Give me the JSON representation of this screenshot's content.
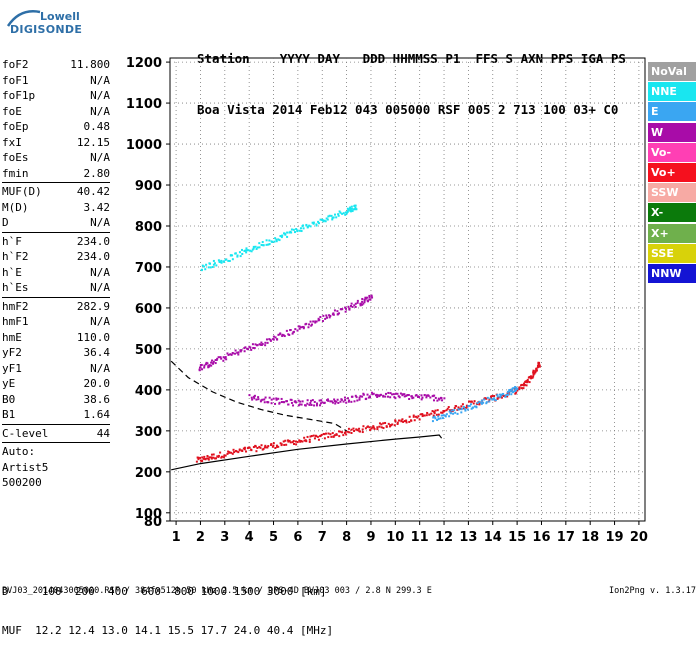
{
  "logo": {
    "line1": "Lowell",
    "line2": "DIGISONDE"
  },
  "header": {
    "labels": "Station    YYYY DAY   DDD HHMMSS P1  FFS S AXN PPS IGA PS",
    "values": "Boa Vista 2014 Feb12 043 005000 RSF 005 2 713 100 03+ C0"
  },
  "params": {
    "group1": [
      {
        "name": "foF2",
        "value": "11.800"
      },
      {
        "name": "foF1",
        "value": "N/A"
      },
      {
        "name": "foF1p",
        "value": "N/A"
      },
      {
        "name": "foE",
        "value": "N/A"
      },
      {
        "name": "foEp",
        "value": "0.48"
      },
      {
        "name": "fxI",
        "value": "12.15"
      },
      {
        "name": "foEs",
        "value": "N/A"
      },
      {
        "name": "fmin",
        "value": "2.80"
      }
    ],
    "group2": [
      {
        "name": "MUF(D)",
        "value": "40.42"
      },
      {
        "name": "M(D)",
        "value": "3.42"
      },
      {
        "name": "D",
        "value": "N/A"
      }
    ],
    "group3": [
      {
        "name": "h`F",
        "value": "234.0"
      },
      {
        "name": "h`F2",
        "value": "234.0"
      },
      {
        "name": "h`E",
        "value": "N/A"
      },
      {
        "name": "h`Es",
        "value": "N/A"
      }
    ],
    "group4": [
      {
        "name": "hmF2",
        "value": "282.9"
      },
      {
        "name": "hmF1",
        "value": "N/A"
      },
      {
        "name": "hmE",
        "value": "110.0"
      },
      {
        "name": "yF2",
        "value": "36.4"
      },
      {
        "name": "yF1",
        "value": "N/A"
      },
      {
        "name": "yE",
        "value": "20.0"
      },
      {
        "name": "B0",
        "value": "38.6"
      },
      {
        "name": "B1",
        "value": "1.64"
      }
    ],
    "clevel": {
      "name": "C-level",
      "value": "44"
    },
    "auto": [
      "Auto:",
      "Artist5",
      "500200"
    ]
  },
  "legend": [
    {
      "label": "NoVal",
      "color": "#a0a0a0"
    },
    {
      "label": "NNE",
      "color": "#19e6f0"
    },
    {
      "label": "E",
      "color": "#3aa6f2"
    },
    {
      "label": "W",
      "color": "#a80ca8"
    },
    {
      "label": "Vo-",
      "color": "#ff3fb4"
    },
    {
      "label": "Vo+",
      "color": "#f5101e"
    },
    {
      "label": "SSW",
      "color": "#f7aaa4"
    },
    {
      "label": "X-",
      "color": "#0b7a0b"
    },
    {
      "label": "X+",
      "color": "#6fb04c"
    },
    {
      "label": "SSE",
      "color": "#d8d20a"
    },
    {
      "label": "NNW",
      "color": "#1414d4"
    }
  ],
  "footer": {
    "d_row": "D     100  200  400  600  800 1000 1500 3000 [km]",
    "muf_row": "MUF  12.2 12.4 13.0 14.1 15.5 17.7 24.0 40.4 [MHz]",
    "file_line": "BVJ03_2014043005000.RSF / 384fx512h 50 kHz 2.5 km / DPS-4D BVJ03 003 / 2.8 N 299.3 E",
    "version": "Ion2Png v. 1.3.17"
  },
  "chart_data": {
    "type": "scatter",
    "title": "",
    "xlabel": "",
    "ylabel": "",
    "xlim": [
      0.75,
      20.25
    ],
    "ylim": [
      80,
      1210
    ],
    "x_ticks": [
      1,
      2,
      3,
      4,
      5,
      6,
      7,
      8,
      9,
      10,
      11,
      12,
      13,
      14,
      15,
      16,
      17,
      18,
      19,
      20
    ],
    "y_ticks": [
      80,
      100,
      200,
      300,
      400,
      500,
      600,
      700,
      800,
      900,
      1000,
      1100,
      1200
    ],
    "grid": true,
    "traces": [
      {
        "name": "O-trace F2",
        "color": "#e0101e",
        "points": [
          [
            1.8,
            230
          ],
          [
            2.5,
            240
          ],
          [
            3.5,
            252
          ],
          [
            4.5,
            262
          ],
          [
            5.5,
            272
          ],
          [
            6.5,
            283
          ],
          [
            7.5,
            294
          ],
          [
            8.5,
            305
          ],
          [
            9.5,
            316
          ],
          [
            10.5,
            330
          ],
          [
            11.5,
            345
          ],
          [
            12.5,
            360
          ],
          [
            13.5,
            375
          ],
          [
            14.5,
            390
          ],
          [
            15.2,
            410
          ],
          [
            15.6,
            440
          ],
          [
            15.9,
            470
          ]
        ]
      },
      {
        "name": "X-trace F2",
        "color": "#3aa6f2",
        "points": [
          [
            11.5,
            330
          ],
          [
            12.5,
            350
          ],
          [
            13.5,
            372
          ],
          [
            14.5,
            392
          ],
          [
            15.0,
            408
          ]
        ]
      },
      {
        "name": "second hop",
        "color": "#a80ca8",
        "points": [
          [
            1.9,
            455
          ],
          [
            2.5,
            470
          ],
          [
            3.5,
            495
          ],
          [
            4.5,
            515
          ],
          [
            5.5,
            540
          ],
          [
            6.5,
            565
          ],
          [
            7.5,
            590
          ],
          [
            8.5,
            615
          ],
          [
            9.0,
            630
          ]
        ]
      },
      {
        "name": "third hop",
        "color": "#19e6f0",
        "points": [
          [
            2.0,
            700
          ],
          [
            3.0,
            720
          ],
          [
            4.0,
            745
          ],
          [
            5.0,
            770
          ],
          [
            6.0,
            795
          ],
          [
            7.0,
            815
          ],
          [
            8.0,
            840
          ],
          [
            8.4,
            850
          ]
        ]
      },
      {
        "name": "spread F",
        "color": "#a80ca8",
        "points": [
          [
            4.0,
            385
          ],
          [
            5.0,
            375
          ],
          [
            6.0,
            370
          ],
          [
            7.0,
            372
          ],
          [
            8.0,
            378
          ],
          [
            9.0,
            390
          ],
          [
            10.0,
            388
          ],
          [
            11.0,
            385
          ],
          [
            12.0,
            382
          ]
        ]
      }
    ],
    "profile_solid": [
      [
        0.8,
        205
      ],
      [
        2.0,
        220
      ],
      [
        4.0,
        238
      ],
      [
        6.0,
        255
      ],
      [
        8.0,
        268
      ],
      [
        10.0,
        280
      ],
      [
        11.0,
        285
      ],
      [
        11.8,
        290
      ],
      [
        11.9,
        282
      ]
    ],
    "profile_dashed": [
      [
        0.8,
        470
      ],
      [
        1.5,
        430
      ],
      [
        2.5,
        395
      ],
      [
        3.5,
        370
      ],
      [
        4.5,
        352
      ],
      [
        5.5,
        338
      ],
      [
        6.5,
        328
      ],
      [
        7.5,
        318
      ],
      [
        8.0,
        300
      ]
    ]
  }
}
